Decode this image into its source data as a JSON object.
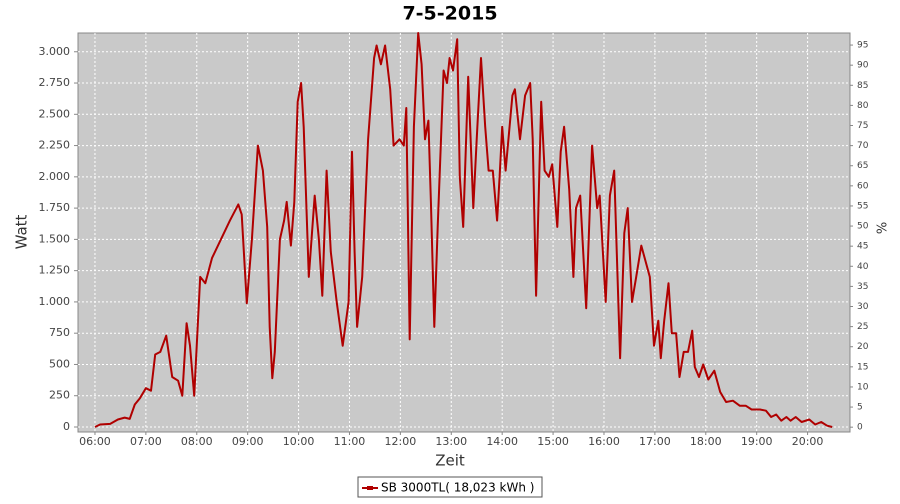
{
  "chart_data": {
    "type": "line",
    "title": "7-5-2015",
    "x_label": "Zeit",
    "y_label": "Watt",
    "y2_label": "%",
    "x": [
      "06:00",
      "06:06",
      "06:18",
      "06:27",
      "06:35",
      "06:41",
      "06:47",
      "06:53",
      "07:00",
      "07:06",
      "07:11",
      "07:17",
      "07:24",
      "07:31",
      "07:38",
      "07:43",
      "07:48",
      "07:52",
      "07:57",
      "08:04",
      "08:10",
      "08:18",
      "08:27",
      "08:39",
      "08:49",
      "08:53",
      "08:59",
      "09:05",
      "09:12",
      "09:18",
      "09:23",
      "09:26",
      "09:29",
      "09:32",
      "09:38",
      "09:43",
      "09:46",
      "09:51",
      "09:55",
      "09:59",
      "10:03",
      "10:06",
      "10:12",
      "10:19",
      "10:24",
      "10:28",
      "10:33",
      "10:38",
      "10:45",
      "10:52",
      "10:59",
      "11:03",
      "11:06",
      "11:09",
      "11:15",
      "11:22",
      "11:29",
      "11:32",
      "11:37",
      "11:42",
      "11:48",
      "11:52",
      "11:59",
      "12:04",
      "12:07",
      "12:11",
      "12:16",
      "12:21",
      "12:25",
      "12:29",
      "12:33",
      "12:36",
      "12:40",
      "12:44",
      "12:51",
      "12:55",
      "12:58",
      "13:02",
      "13:07",
      "13:10",
      "13:14",
      "13:20",
      "13:26",
      "13:30",
      "13:35",
      "13:40",
      "13:44",
      "13:49",
      "13:54",
      "13:57",
      "14:00",
      "14:04",
      "14:12",
      "14:15",
      "14:21",
      "14:27",
      "14:33",
      "14:36",
      "14:40",
      "14:46",
      "14:50",
      "14:55",
      "14:59",
      "15:05",
      "15:09",
      "15:13",
      "15:19",
      "15:24",
      "15:27",
      "15:32",
      "15:39",
      "15:46",
      "15:52",
      "15:55",
      "16:02",
      "16:07",
      "16:12",
      "16:19",
      "16:24",
      "16:28",
      "16:33",
      "16:38",
      "16:44",
      "16:50",
      "16:54",
      "16:59",
      "17:04",
      "17:07",
      "17:11",
      "17:16",
      "17:20",
      "17:25",
      "17:29",
      "17:34",
      "17:39",
      "17:44",
      "17:47",
      "17:52",
      "17:57",
      "18:03",
      "18:10",
      "18:17",
      "18:24",
      "18:32",
      "18:40",
      "18:47",
      "18:54",
      "19:04",
      "19:11",
      "19:17",
      "19:23",
      "19:29",
      "19:35",
      "19:40",
      "19:46",
      "19:53",
      "20:02",
      "20:09",
      "20:16",
      "20:23",
      "20:29"
    ],
    "series": [
      {
        "name": "SB 3000TL( 18,023 kWh )",
        "color": "#b00000",
        "values": [
          0,
          20,
          25,
          60,
          75,
          65,
          180,
          230,
          310,
          290,
          580,
          600,
          730,
          400,
          370,
          250,
          830,
          650,
          250,
          1200,
          1150,
          1350,
          1480,
          1650,
          1780,
          1700,
          990,
          1500,
          2250,
          2050,
          1600,
          800,
          390,
          600,
          1500,
          1650,
          1800,
          1450,
          1800,
          2600,
          2750,
          2400,
          1200,
          1850,
          1500,
          1050,
          2050,
          1400,
          1000,
          650,
          1000,
          2200,
          1400,
          800,
          1200,
          2300,
          2950,
          3050,
          2900,
          3050,
          2700,
          2250,
          2300,
          2250,
          2550,
          700,
          2400,
          3150,
          2900,
          2300,
          2450,
          1800,
          800,
          1600,
          2850,
          2750,
          2950,
          2850,
          3100,
          2000,
          1600,
          2800,
          1750,
          2300,
          2950,
          2400,
          2050,
          2050,
          1650,
          2000,
          2400,
          2050,
          2650,
          2700,
          2300,
          2650,
          2750,
          2300,
          1050,
          2600,
          2050,
          2000,
          2100,
          1600,
          2200,
          2400,
          1900,
          1200,
          1750,
          1850,
          950,
          2250,
          1750,
          1850,
          1000,
          1850,
          2050,
          550,
          1550,
          1750,
          1000,
          1200,
          1450,
          1300,
          1200,
          650,
          850,
          550,
          850,
          1150,
          750,
          750,
          400,
          600,
          600,
          770,
          480,
          400,
          500,
          380,
          450,
          280,
          200,
          210,
          170,
          170,
          140,
          140,
          130,
          80,
          100,
          50,
          80,
          50,
          80,
          40,
          60,
          20,
          40,
          10,
          0
        ]
      }
    ],
    "xlim": [
      "05:40",
      "20:50"
    ],
    "xticks": [
      "06:00",
      "07:00",
      "08:00",
      "09:00",
      "10:00",
      "11:00",
      "12:00",
      "13:00",
      "14:00",
      "15:00",
      "16:00",
      "17:00",
      "18:00",
      "19:00",
      "20:00"
    ],
    "ylim": [
      -40,
      3150
    ],
    "yticks": [
      0,
      250,
      500,
      750,
      {
        "value": 1000,
        "label": "1.000"
      },
      {
        "value": 1250,
        "label": "1.250"
      },
      {
        "value": 1500,
        "label": "1.500"
      },
      {
        "value": 1750,
        "label": "1.750"
      },
      {
        "value": 2000,
        "label": "2.000"
      },
      {
        "value": 2250,
        "label": "2.250"
      },
      {
        "value": 2500,
        "label": "2.500"
      },
      {
        "value": 2750,
        "label": "2.750"
      },
      {
        "value": 3000,
        "label": "3.000"
      }
    ],
    "y2lim": [
      -1.2,
      98
    ],
    "y2ticks": [
      0,
      5,
      10,
      15,
      20,
      25,
      30,
      35,
      40,
      45,
      50,
      55,
      60,
      65,
      70,
      75,
      80,
      85,
      90,
      95
    ],
    "grid": true,
    "legend": "bottom"
  }
}
